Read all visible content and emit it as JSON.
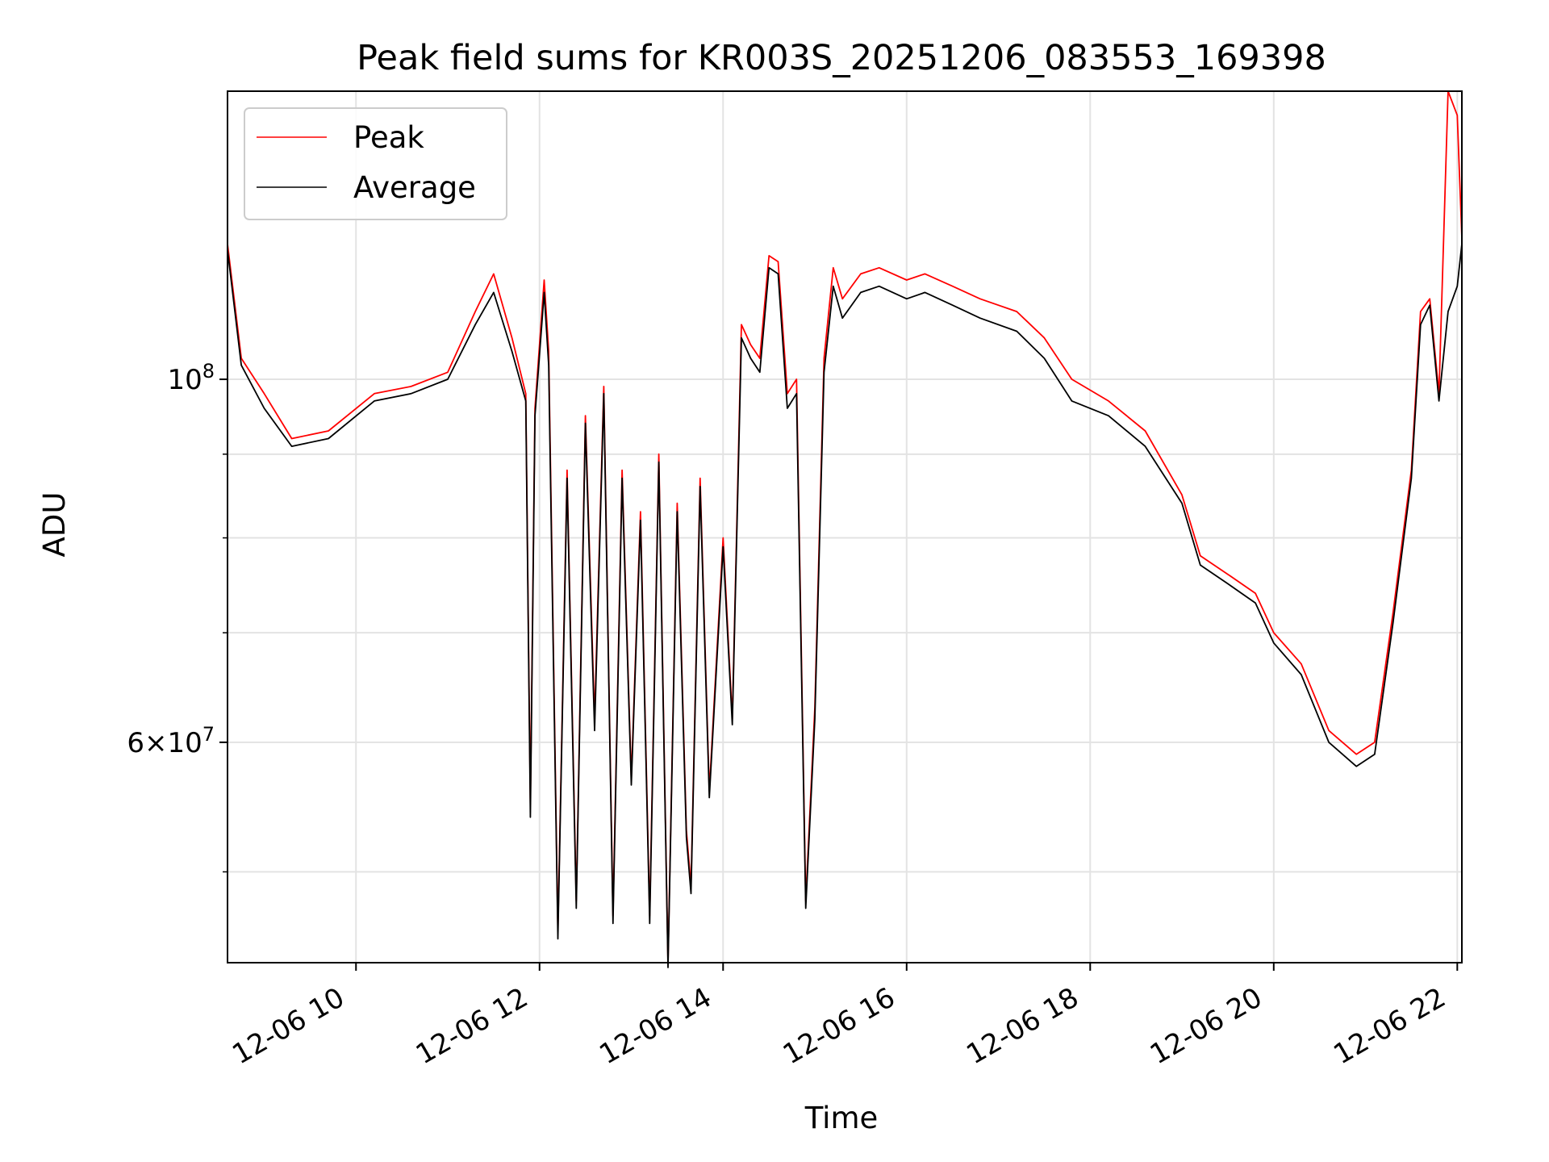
{
  "chart_data": {
    "type": "line",
    "title": "Peak field sums for KR003S_20251206_083553_169398",
    "xlabel": "Time",
    "ylabel": "ADU",
    "yscale": "log",
    "xlim": [
      8.6,
      22.05
    ],
    "ylim": [
      44000000,
      150000000
    ],
    "grid": true,
    "legend_position": "upper-left",
    "x_ticks": [
      {
        "value": 10,
        "label": "12-06 10"
      },
      {
        "value": 12,
        "label": "12-06 12"
      },
      {
        "value": 14,
        "label": "12-06 14"
      },
      {
        "value": 16,
        "label": "12-06 16"
      },
      {
        "value": 18,
        "label": "12-06 18"
      },
      {
        "value": 20,
        "label": "12-06 20"
      },
      {
        "value": 22,
        "label": "12-06 22"
      }
    ],
    "y_ticks_major": [
      {
        "value": 60000000,
        "base": "6",
        "exp": "7",
        "times": true
      },
      {
        "value": 100000000,
        "base": "10",
        "exp": "8",
        "times": false
      }
    ],
    "y_ticks_minor": [
      50000000,
      70000000,
      80000000,
      90000000
    ],
    "x": [
      8.6,
      8.75,
      9.0,
      9.3,
      9.7,
      10.2,
      10.6,
      11.0,
      11.3,
      11.5,
      11.7,
      11.85,
      11.9,
      11.95,
      12.05,
      12.1,
      12.2,
      12.3,
      12.4,
      12.5,
      12.6,
      12.7,
      12.8,
      12.9,
      13.0,
      13.1,
      13.2,
      13.3,
      13.4,
      13.5,
      13.6,
      13.65,
      13.75,
      13.85,
      14.0,
      14.1,
      14.2,
      14.3,
      14.4,
      14.5,
      14.6,
      14.7,
      14.8,
      14.9,
      15.0,
      15.1,
      15.2,
      15.3,
      15.5,
      15.7,
      16.0,
      16.2,
      16.5,
      16.8,
      17.2,
      17.5,
      17.8,
      18.2,
      18.6,
      19.0,
      19.2,
      19.5,
      19.8,
      20.0,
      20.3,
      20.6,
      20.9,
      21.1,
      21.3,
      21.5,
      21.6,
      21.7,
      21.8,
      21.9,
      22.0,
      22.05
    ],
    "series": [
      {
        "name": "Peak",
        "color": "#ff0000",
        "values": [
          121000000,
          103000000,
          98000000,
          92000000,
          93000000,
          98000000,
          99000000,
          101000000,
          110000000,
          116000000,
          106000000,
          98000000,
          55000000,
          96000000,
          115000000,
          104000000,
          46000000,
          88000000,
          48000000,
          95000000,
          62000000,
          99000000,
          47000000,
          88000000,
          57000000,
          83000000,
          47000000,
          90000000,
          44000000,
          84000000,
          53000000,
          49000000,
          87000000,
          56000000,
          80000000,
          62000000,
          108000000,
          105000000,
          103000000,
          119000000,
          118000000,
          98000000,
          100000000,
          48000000,
          63000000,
          103000000,
          117000000,
          112000000,
          116000000,
          117000000,
          115000000,
          116000000,
          114000000,
          112000000,
          110000000,
          106000000,
          100000000,
          97000000,
          93000000,
          85000000,
          78000000,
          76000000,
          74000000,
          70000000,
          67000000,
          61000000,
          59000000,
          60000000,
          72000000,
          88000000,
          110000000,
          112000000,
          98000000,
          150000000,
          145000000,
          122000000
        ]
      },
      {
        "name": "Average",
        "color": "#000000",
        "values": [
          120000000,
          102000000,
          96000000,
          91000000,
          92000000,
          97000000,
          98000000,
          100000000,
          108000000,
          113000000,
          104000000,
          97000000,
          54000000,
          95000000,
          113000000,
          102000000,
          45500000,
          87000000,
          47500000,
          94000000,
          61000000,
          98000000,
          46500000,
          87000000,
          56500000,
          82000000,
          46500000,
          89000000,
          43700000,
          83000000,
          52500000,
          48500000,
          86000000,
          55500000,
          79000000,
          61500000,
          106000000,
          103000000,
          101000000,
          117000000,
          116000000,
          96000000,
          98000000,
          47500000,
          62000000,
          101000000,
          114000000,
          109000000,
          113000000,
          114000000,
          112000000,
          113000000,
          111000000,
          109000000,
          107000000,
          103000000,
          97000000,
          95000000,
          91000000,
          84000000,
          77000000,
          75000000,
          73000000,
          69000000,
          66000000,
          60000000,
          58000000,
          59000000,
          71000000,
          87000000,
          108000000,
          111000000,
          97000000,
          110000000,
          114000000,
          121000000
        ]
      }
    ]
  }
}
